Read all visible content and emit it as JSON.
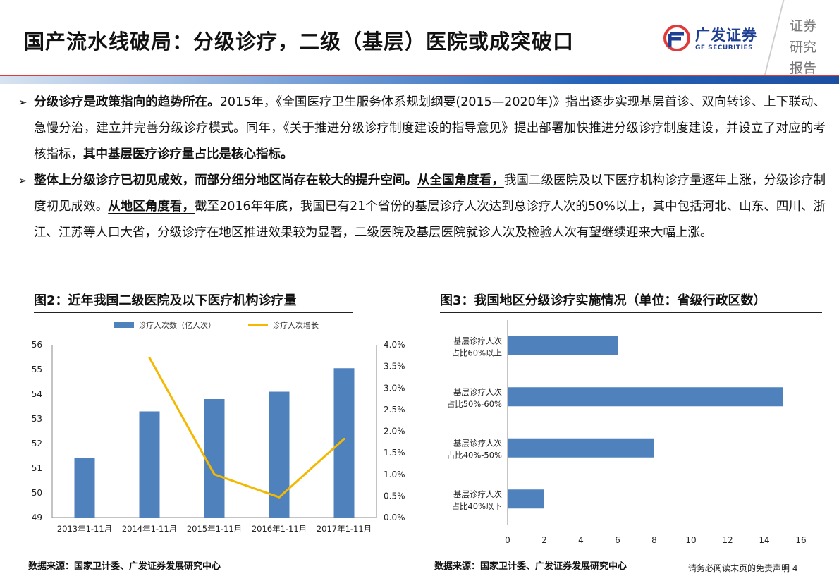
{
  "header": {
    "title": "国产流水线破局：分级诊疗，二级（基层）医院或成突破口",
    "logo_cn": "广发证券",
    "logo_en": "GF SECURITIES",
    "stamp": [
      "证券",
      "研究",
      "报告"
    ]
  },
  "bullets": [
    {
      "mark": "➢",
      "segments": [
        {
          "style": "bold",
          "text": "分级诊疗是政策指向的趋势所在。"
        },
        {
          "style": "normal",
          "text": "2015年，《全国医疗卫生服务体系规划纲要(2015—2020年)》指出逐步实现基层首诊、双向转诊、上下联动、急慢分治，建立并完善分级诊疗模式。同年，《关于推进分级诊疗制度建设的指导意见》提出部署加快推进分级诊疗制度建设，并设立了对应的考核指标，"
        },
        {
          "style": "ul",
          "text": "其中基层医疗诊疗量占比是核心指标。"
        }
      ]
    },
    {
      "mark": "➢",
      "segments": [
        {
          "style": "bold",
          "text": "整体上分级诊疗已初见成效，而部分细分地区尚存在较大的提升空间。"
        },
        {
          "style": "ul",
          "text": "从全国角度看，"
        },
        {
          "style": "normal",
          "text": "我国二级医院及以下医疗机构诊疗量逐年上涨，分级诊疗制度初见成效。"
        },
        {
          "style": "ul",
          "text": "从地区角度看，"
        },
        {
          "style": "normal",
          "text": "截至2016年年底，我国已有21个省份的基层诊疗人次达到总诊疗人次的50%以上，其中包括河北、山东、四川、浙江、江苏等人口大省，分级诊疗在地区推进效果较为显著，二级医院及基层医院就诊人次及检验人次有望继续迎来大幅上涨。"
        }
      ]
    }
  ],
  "figures": {
    "fig2_title": "图2：近年我国二级医院及以下医疗机构诊疗量",
    "fig3_title": "图3：我国地区分级诊疗实施情况（单位：省级行政区数）",
    "fig2_source": "数据来源：国家卫计委、广发证券发展研究中心",
    "fig3_source": "数据来源：国家卫计委、广发证券发展研究中心"
  },
  "footer": {
    "disclaimer": "请务必阅读末页的免责声明",
    "page_number": "4"
  },
  "colors": {
    "bar": "#4f81bd",
    "line": "#f5b800",
    "brand": "#1f3f93",
    "accent_red": "#e03b3b"
  },
  "chart_data": [
    {
      "type": "bar",
      "categories": [
        "2013年1-11月",
        "2014年1-11月",
        "2015年1-11月",
        "2016年1-11月",
        "2017年1-11月"
      ],
      "series": [
        {
          "name": "诊疗人次数（亿人次）",
          "type": "bar",
          "axis": "left",
          "values": [
            51.4,
            53.3,
            53.8,
            54.1,
            55.05
          ]
        },
        {
          "name": "诊疗人次增长",
          "type": "line",
          "axis": "right",
          "values": [
            null,
            0.037,
            0.01,
            0.0047,
            0.0182
          ]
        }
      ],
      "ylim": [
        49,
        56
      ],
      "yticks": [
        49,
        50,
        51,
        52,
        53,
        54,
        55,
        56
      ],
      "y2lim": [
        0,
        0.04
      ],
      "y2ticks": [
        "0.0%",
        "0.5%",
        "1.0%",
        "1.5%",
        "2.0%",
        "2.5%",
        "3.0%",
        "3.5%",
        "4.0%"
      ],
      "legend": "top"
    },
    {
      "type": "bar",
      "orientation": "horizontal",
      "categories": [
        [
          "基层诊疗人次",
          "占比60%以上"
        ],
        [
          "基层诊疗人次",
          "占比50%-60%"
        ],
        [
          "基层诊疗人次",
          "占比40%-50%"
        ],
        [
          "基层诊疗人次",
          "占比40%以下"
        ]
      ],
      "values": [
        6,
        15,
        8,
        2
      ],
      "xlim": [
        0,
        16
      ],
      "xticks": [
        0,
        2,
        4,
        6,
        8,
        10,
        12,
        14,
        16
      ]
    }
  ]
}
